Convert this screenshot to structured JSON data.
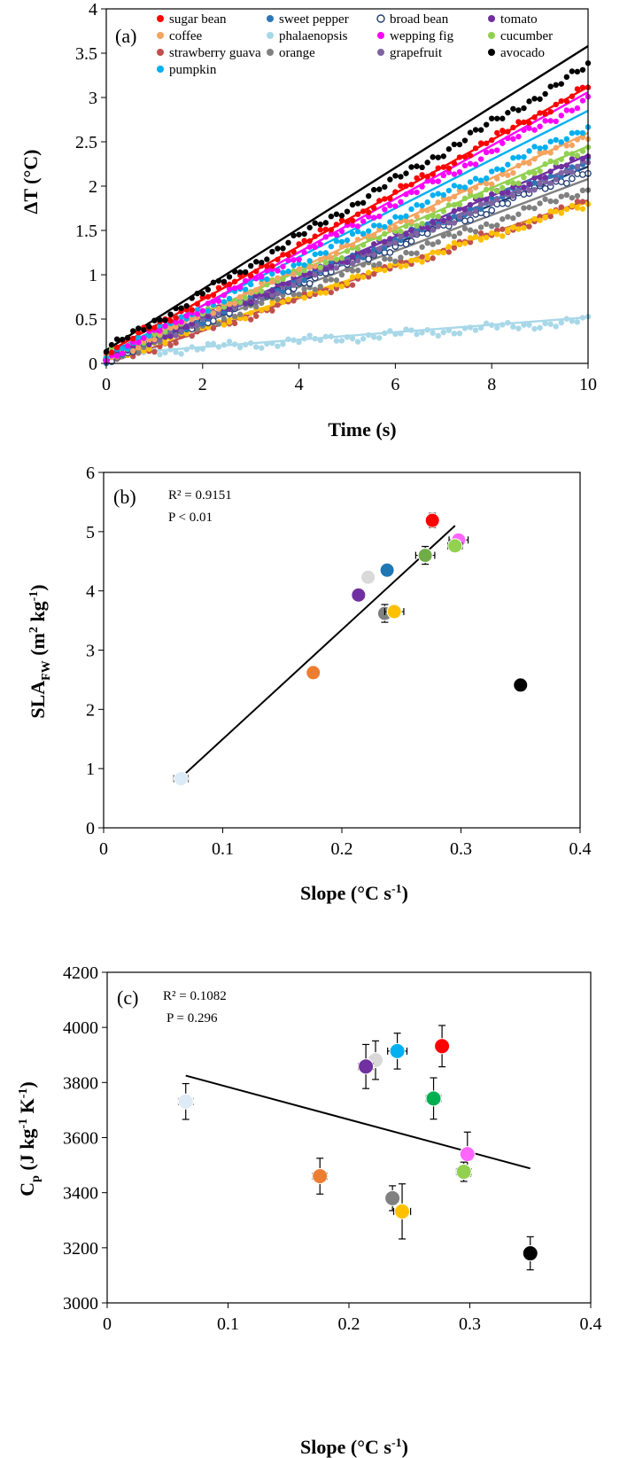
{
  "chart_data": [
    {
      "panel": "(a)",
      "type": "scatter",
      "xlabel": "Time (s)",
      "ylabel": "ΔT (°C)",
      "xlim": [
        0,
        10
      ],
      "ylim": [
        0,
        4
      ],
      "xticks": [
        "0",
        "2",
        "4",
        "6",
        "8",
        "10"
      ],
      "yticks": [
        "0",
        "0.5",
        "1",
        "1.5",
        "2",
        "2.5",
        "3",
        "3.5",
        "4"
      ],
      "legend_position": "top",
      "series": [
        {
          "name": "sugar bean",
          "color": "#ff0000",
          "start": 0.12,
          "end": 3.12,
          "line_end": 3.12
        },
        {
          "name": "sweet pepper",
          "color": "#2e75b6",
          "start": 0.05,
          "end": 2.28,
          "line_end": 2.27
        },
        {
          "name": "broad bean",
          "color": "#1f3b73",
          "start": 0.05,
          "end": 2.18,
          "line_end": 2.22
        },
        {
          "name": "tomato",
          "color": "#7030a0",
          "start": 0.05,
          "end": 2.34,
          "line_end": 2.35
        },
        {
          "name": "coffee",
          "color": "#f4a460",
          "start": 0.05,
          "end": 2.58,
          "line_end": 2.6
        },
        {
          "name": "phalaenopsis",
          "color": "#a8d8e8",
          "start": 0.1,
          "end": 0.48,
          "line_end": 0.52
        },
        {
          "name": "wepping fig",
          "color": "#ff00ff",
          "start": 0.05,
          "end": 2.98,
          "line_end": 3.06
        },
        {
          "name": "cucumber",
          "color": "#92d050",
          "start": 0.1,
          "end": 2.42,
          "line_end": 2.45
        },
        {
          "name": "strawberry guava",
          "color": "#c0504d",
          "start": 0.0,
          "end": 1.82,
          "line_end": 1.84
        },
        {
          "name": "orange",
          "color": "#808080",
          "start": 0.05,
          "end": 1.97,
          "line_end": 2.08
        },
        {
          "name": "grapefruit",
          "color": "#8064a2",
          "start": 0.05,
          "end": 2.25,
          "line_end": 2.28
        },
        {
          "name": "avocado",
          "color": "#000000",
          "start": 0.15,
          "end": 3.35,
          "line_end": 3.58
        },
        {
          "name": "pumpkin",
          "color": "#00b0f0",
          "start": 0.1,
          "end": 2.68,
          "line_end": 2.85
        },
        {
          "name": "",
          "color": "#ffc000",
          "start": 0.05,
          "end": 1.8,
          "line_end": 1.82
        }
      ]
    },
    {
      "panel": "(b)",
      "type": "scatter",
      "xlabel": "Slope (°C s-1)",
      "ylabel": "SLAFW (m2 kg-1)",
      "xlim": [
        0,
        0.4
      ],
      "ylim": [
        0,
        6
      ],
      "xticks": [
        "0",
        "0.1",
        "0.2",
        "0.3",
        "0.4"
      ],
      "yticks": [
        "0",
        "1",
        "2",
        "3",
        "4",
        "5",
        "6"
      ],
      "annotations": [
        "R² = 0.9151",
        "P  < 0.01"
      ],
      "fit_line": [
        [
          0.065,
          0.85
        ],
        [
          0.295,
          5.1
        ]
      ],
      "points": [
        {
          "x": 0.276,
          "y": 5.19,
          "yerr": 0.12,
          "xerr": 0.005,
          "color": "#ff0000"
        },
        {
          "x": 0.298,
          "y": 4.86,
          "yerr": 0.08,
          "xerr": 0.008,
          "color": "#ff66ff"
        },
        {
          "x": 0.295,
          "y": 4.76,
          "yerr": 0.06,
          "xerr": 0.006,
          "color": "#92d050"
        },
        {
          "x": 0.27,
          "y": 4.6,
          "yerr": 0.15,
          "xerr": 0.008,
          "color": "#70ad47"
        },
        {
          "x": 0.238,
          "y": 4.35,
          "yerr": 0.05,
          "xerr": 0.004,
          "color": "#1f77b4"
        },
        {
          "x": 0.222,
          "y": 4.23,
          "yerr": 0.05,
          "xerr": 0.003,
          "color": "#d9d9d9"
        },
        {
          "x": 0.214,
          "y": 3.93,
          "yerr": 0.05,
          "xerr": 0.005,
          "color": "#7030a0"
        },
        {
          "x": 0.236,
          "y": 3.62,
          "yerr": 0.15,
          "xerr": 0.005,
          "color": "#808080"
        },
        {
          "x": 0.244,
          "y": 3.65,
          "yerr": 0.05,
          "xerr": 0.008,
          "color": "#ffc000"
        },
        {
          "x": 0.176,
          "y": 2.62,
          "yerr": 0.05,
          "xerr": 0.005,
          "color": "#ed7d31"
        },
        {
          "x": 0.35,
          "y": 2.41,
          "yerr": 0.04,
          "xerr": 0.0,
          "color": "#000000"
        },
        {
          "x": 0.065,
          "y": 0.83,
          "yerr": 0.05,
          "xerr": 0.006,
          "color": "#ddebf7"
        }
      ]
    },
    {
      "panel": "(c)",
      "type": "scatter",
      "xlabel": "Slope (°C s-1)",
      "ylabel": "Cp  (J kg-1 K-1)",
      "xlim": [
        0,
        0.4
      ],
      "ylim": [
        3000,
        4200
      ],
      "xticks": [
        "0",
        "0.1",
        "0.2",
        "0.3",
        "0.4"
      ],
      "yticks": [
        "3000",
        "3200",
        "3400",
        "3600",
        "3800",
        "4000",
        "4200"
      ],
      "annotations": [
        "R² = 0.1082",
        "P  = 0.296"
      ],
      "fit_line": [
        [
          0.065,
          3825
        ],
        [
          0.35,
          3488
        ]
      ],
      "points": [
        {
          "x": 0.277,
          "y": 3932,
          "yerr": 75,
          "xerr": 0.005,
          "color": "#ff0000"
        },
        {
          "x": 0.24,
          "y": 3914,
          "yerr": 65,
          "xerr": 0.008,
          "color": "#00b0f0"
        },
        {
          "x": 0.222,
          "y": 3881,
          "yerr": 70,
          "xerr": 0.004,
          "color": "#d9d9d9"
        },
        {
          "x": 0.214,
          "y": 3858,
          "yerr": 80,
          "xerr": 0.006,
          "color": "#7030a0"
        },
        {
          "x": 0.27,
          "y": 3742,
          "yerr": 75,
          "xerr": 0.006,
          "color": "#00b050"
        },
        {
          "x": 0.065,
          "y": 3731,
          "yerr": 65,
          "xerr": 0.006,
          "color": "#ddebf7"
        },
        {
          "x": 0.298,
          "y": 3540,
          "yerr": 80,
          "xerr": 0.005,
          "color": "#ff66ff"
        },
        {
          "x": 0.295,
          "y": 3476,
          "yerr": 35,
          "xerr": 0.006,
          "color": "#92d050"
        },
        {
          "x": 0.176,
          "y": 3460,
          "yerr": 65,
          "xerr": 0.006,
          "color": "#ed7d31"
        },
        {
          "x": 0.236,
          "y": 3380,
          "yerr": 45,
          "xerr": 0.005,
          "color": "#808080"
        },
        {
          "x": 0.244,
          "y": 3332,
          "yerr": 100,
          "xerr": 0.007,
          "color": "#ffc000"
        },
        {
          "x": 0.35,
          "y": 3180,
          "yerr": 60,
          "xerr": 0.004,
          "color": "#000000"
        }
      ]
    }
  ]
}
